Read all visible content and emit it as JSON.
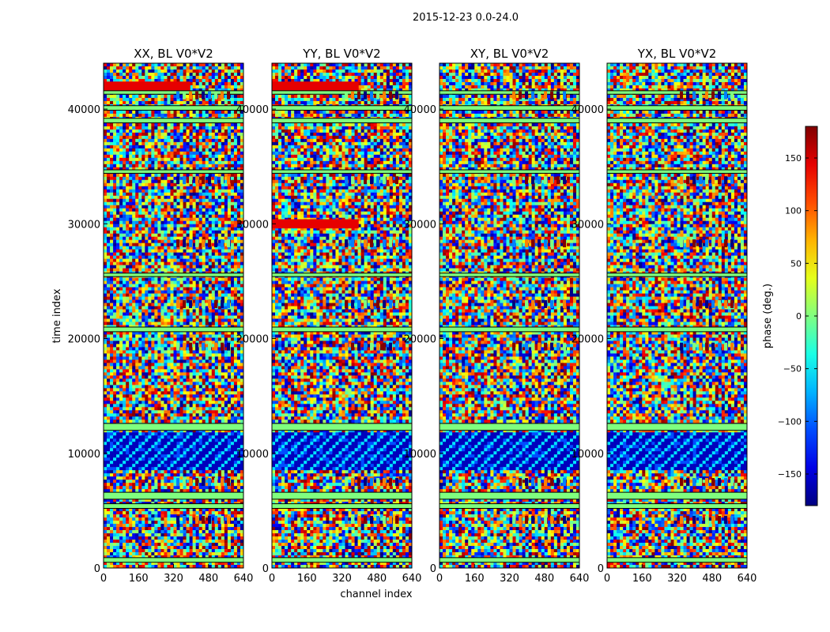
{
  "figure_title": "2015-12-23 0.0-24.0",
  "chart_data": {
    "type": "heatmap",
    "title": "2015-12-23 0.0-24.0",
    "xlabel": "channel index",
    "ylabel": "time index",
    "xlim": [
      0,
      640
    ],
    "ylim": [
      0,
      44000
    ],
    "x_ticks": [
      "0",
      "160",
      "320",
      "480",
      "640"
    ],
    "y_ticks": [
      "0",
      "10000",
      "20000",
      "30000",
      "40000"
    ],
    "panels": [
      {
        "title": "XX, BL V0*V2",
        "pol": "XX"
      },
      {
        "title": "YY, BL V0*V2",
        "pol": "YY"
      },
      {
        "title": "XY, BL V0*V2",
        "pol": "XY"
      },
      {
        "title": "YX, BL V0*V2",
        "pol": "YX"
      }
    ],
    "colorbar": {
      "label": "phase (deg.)",
      "range": [
        -180,
        180
      ],
      "ticks": [
        "150",
        "100",
        "50",
        "0",
        "−50",
        "−100",
        "−150"
      ],
      "tick_values": [
        150,
        100,
        50,
        0,
        -50,
        -100,
        -150
      ],
      "colormap": [
        "#00007f",
        "#0000ff",
        "#00ffff",
        "#7fff7f",
        "#ffff00",
        "#ff0000",
        "#7f0000"
      ]
    },
    "flagged_bands_time_index": [
      [
        500,
        900
      ],
      [
        5200,
        5600
      ],
      [
        6000,
        6600
      ],
      [
        12000,
        12600
      ],
      [
        20600,
        21000
      ],
      [
        25400,
        25700
      ],
      [
        34400,
        34700
      ],
      [
        38800,
        39200
      ],
      [
        39900,
        40300
      ],
      [
        41300,
        41600
      ]
    ],
    "dense_blue_region_time_index": [
      8500,
      11800
    ],
    "fringe_features_time_index": [
      4200,
      7500,
      19300,
      23000,
      28300,
      33800,
      41200
    ],
    "high_phase_bands_time_index": [
      {
        "pol": "YY",
        "center": 30000
      },
      {
        "pol": "YY",
        "center": 42000
      },
      {
        "pol": "XX",
        "center": 42000
      }
    ]
  }
}
